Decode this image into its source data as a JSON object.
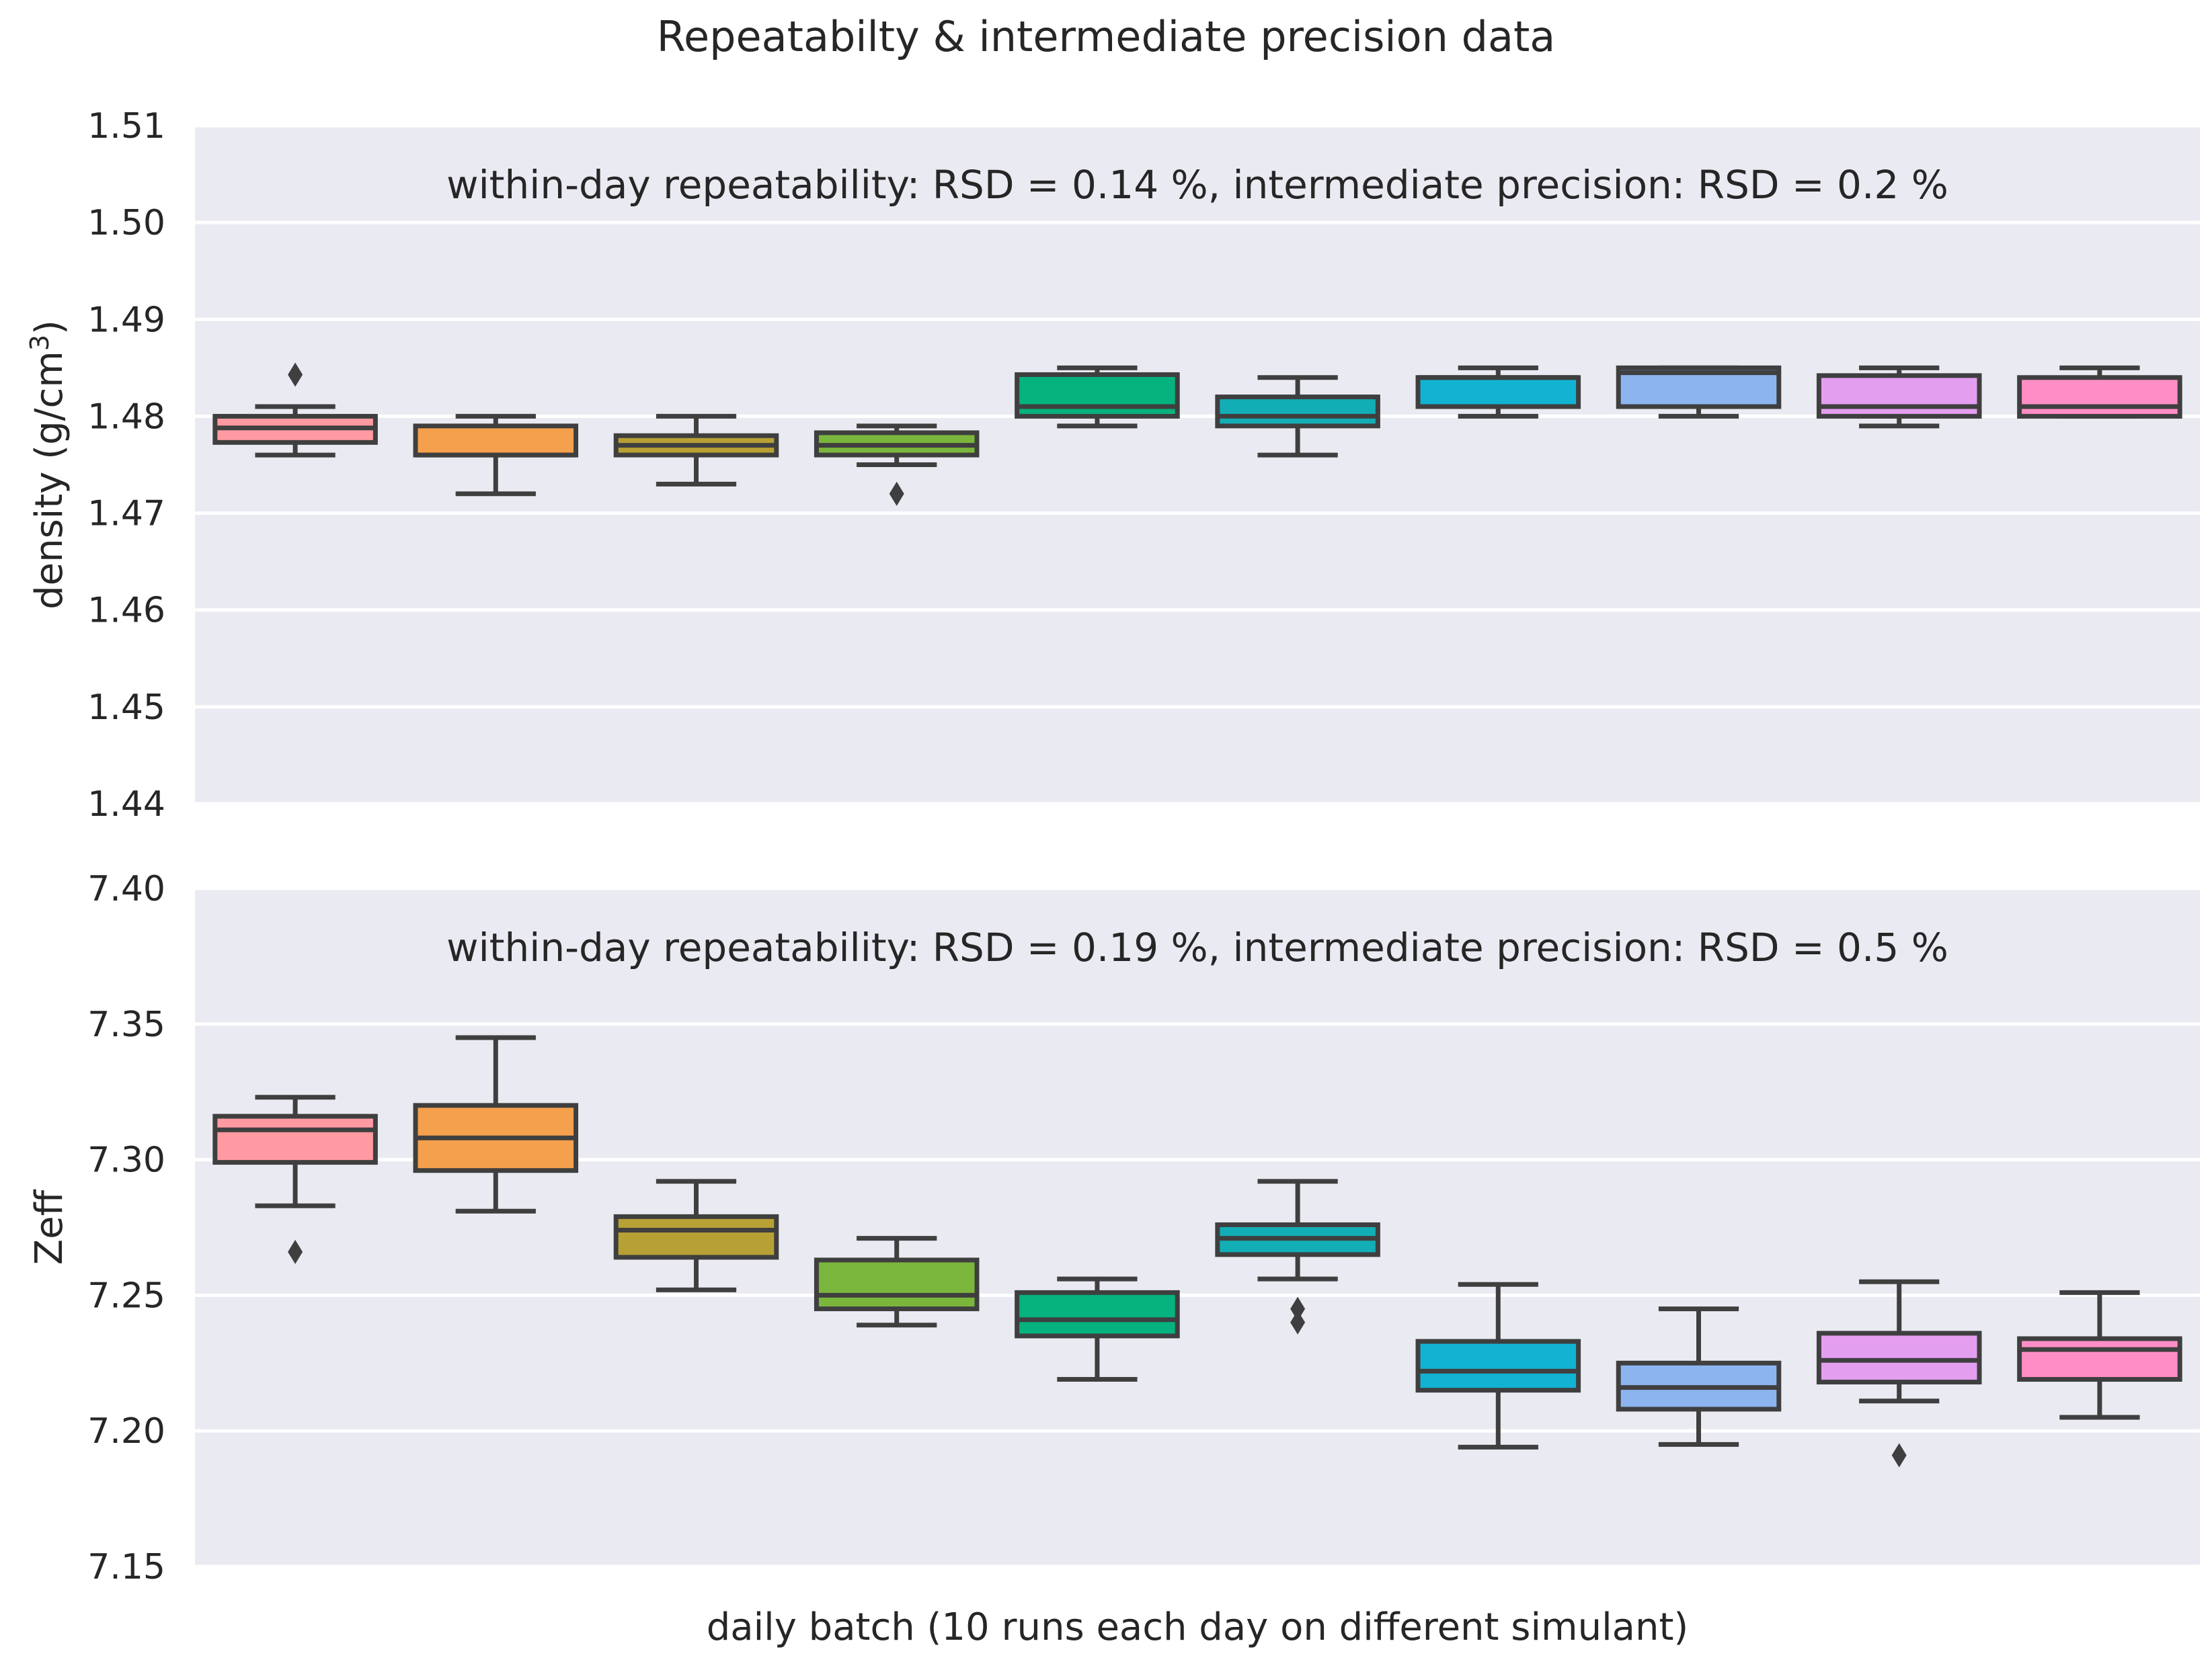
{
  "chart_data": {
    "title": "Repeatabilty & intermediate precision data",
    "xlabel": "daily batch (10 runs each day on different simulant)",
    "type": "box",
    "colors": [
      "#ff9aa2",
      "#f5a04c",
      "#b8a134",
      "#7bb63c",
      "#06b27e",
      "#13aeb5",
      "#12b2d2",
      "#8cb5f0",
      "#e49ef0",
      "#ff8ec6"
    ],
    "panels": [
      {
        "ylabel": "density (g/cm",
        "ylabel_sup": "3",
        "ylabel_end": ")",
        "annotation": "within-day repeatability: RSD = 0.14 %, intermediate precision: RSD = 0.2 %",
        "ylim": [
          1.44,
          1.51
        ],
        "yticks": [
          "1.44",
          "1.45",
          "1.46",
          "1.47",
          "1.48",
          "1.49",
          "1.50",
          "1.51"
        ],
        "boxes": [
          {
            "whislo": 1.476,
            "q1": 1.4773,
            "med": 1.4788,
            "q3": 1.48,
            "whishi": 1.481,
            "fliers": [
              1.4843
            ]
          },
          {
            "whislo": 1.472,
            "q1": 1.476,
            "med": 1.476,
            "q3": 1.479,
            "whishi": 1.48,
            "fliers": []
          },
          {
            "whislo": 1.473,
            "q1": 1.476,
            "med": 1.477,
            "q3": 1.478,
            "whishi": 1.48,
            "fliers": []
          },
          {
            "whislo": 1.475,
            "q1": 1.476,
            "med": 1.477,
            "q3": 1.4783,
            "whishi": 1.479,
            "fliers": [
              1.472
            ]
          },
          {
            "whislo": 1.479,
            "q1": 1.48,
            "med": 1.481,
            "q3": 1.4843,
            "whishi": 1.485,
            "fliers": []
          },
          {
            "whislo": 1.476,
            "q1": 1.479,
            "med": 1.48,
            "q3": 1.482,
            "whishi": 1.484,
            "fliers": []
          },
          {
            "whislo": 1.48,
            "q1": 1.481,
            "med": 1.484,
            "q3": 1.484,
            "whishi": 1.485,
            "fliers": []
          },
          {
            "whislo": 1.48,
            "q1": 1.481,
            "med": 1.4845,
            "q3": 1.485,
            "whishi": 1.485,
            "fliers": []
          },
          {
            "whislo": 1.479,
            "q1": 1.48,
            "med": 1.481,
            "q3": 1.4842,
            "whishi": 1.485,
            "fliers": []
          },
          {
            "whislo": 1.48,
            "q1": 1.48,
            "med": 1.481,
            "q3": 1.484,
            "whishi": 1.485,
            "fliers": []
          }
        ]
      },
      {
        "ylabel": "Zeff",
        "ylabel_sup": "",
        "ylabel_end": "",
        "annotation": "within-day repeatability: RSD = 0.19 %, intermediate precision: RSD = 0.5 %",
        "ylim": [
          7.15,
          7.4
        ],
        "yticks": [
          "7.15",
          "7.20",
          "7.25",
          "7.30",
          "7.35",
          "7.40"
        ],
        "boxes": [
          {
            "whislo": 7.283,
            "q1": 7.299,
            "med": 7.311,
            "q3": 7.316,
            "whishi": 7.323,
            "fliers": [
              7.266
            ]
          },
          {
            "whislo": 7.281,
            "q1": 7.296,
            "med": 7.308,
            "q3": 7.32,
            "whishi": 7.345,
            "fliers": []
          },
          {
            "whislo": 7.252,
            "q1": 7.264,
            "med": 7.274,
            "q3": 7.279,
            "whishi": 7.292,
            "fliers": []
          },
          {
            "whislo": 7.239,
            "q1": 7.245,
            "med": 7.25,
            "q3": 7.263,
            "whishi": 7.271,
            "fliers": []
          },
          {
            "whislo": 7.219,
            "q1": 7.235,
            "med": 7.241,
            "q3": 7.251,
            "whishi": 7.256,
            "fliers": []
          },
          {
            "whislo": 7.256,
            "q1": 7.265,
            "med": 7.271,
            "q3": 7.276,
            "whishi": 7.292,
            "fliers": [
              7.245,
              7.24
            ]
          },
          {
            "whislo": 7.194,
            "q1": 7.215,
            "med": 7.222,
            "q3": 7.233,
            "whishi": 7.254,
            "fliers": []
          },
          {
            "whislo": 7.195,
            "q1": 7.208,
            "med": 7.216,
            "q3": 7.225,
            "whishi": 7.245,
            "fliers": []
          },
          {
            "whislo": 7.211,
            "q1": 7.218,
            "med": 7.226,
            "q3": 7.236,
            "whishi": 7.255,
            "fliers": [
              7.191
            ]
          },
          {
            "whislo": 7.205,
            "q1": 7.219,
            "med": 7.23,
            "q3": 7.234,
            "whishi": 7.251,
            "fliers": []
          }
        ]
      }
    ]
  }
}
